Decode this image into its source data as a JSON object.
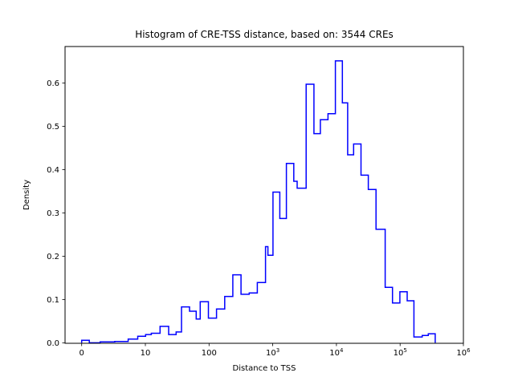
{
  "chart_data": {
    "type": "histogram-step",
    "title": "Histogram of CRE-TSS distance, based on: 3544 CREs",
    "xlabel": "Distance to TSS",
    "ylabel": "Density",
    "n_cres": 3544,
    "x_scale": "symlog",
    "x_linthresh": 10,
    "xlim_ticks": [
      0,
      1000000
    ],
    "ylim": [
      0,
      0.684
    ],
    "grid": false,
    "legend": "none",
    "line_color": "#0000ff",
    "frame_color": "#000000",
    "x_ticks": [
      {
        "v": 0,
        "label": "0",
        "exp": ""
      },
      {
        "v": 10,
        "label": "10",
        "exp": ""
      },
      {
        "v": 100,
        "label": "100",
        "exp": ""
      },
      {
        "v": 1000,
        "label": "10",
        "exp": "3"
      },
      {
        "v": 10000,
        "label": "10",
        "exp": "4"
      },
      {
        "v": 100000,
        "label": "10",
        "exp": "5"
      },
      {
        "v": 1000000,
        "label": "10",
        "exp": "6"
      }
    ],
    "y_ticks": [
      0.0,
      0.1,
      0.2,
      0.3,
      0.4,
      0.5,
      0.6
    ],
    "bins_format": [
      "x_left",
      "x_right",
      "density"
    ],
    "bins": [
      [
        0,
        1.2,
        0.006
      ],
      [
        1.2,
        2.9,
        0.0
      ],
      [
        2.9,
        5.2,
        0.002
      ],
      [
        5.2,
        7.3,
        0.003
      ],
      [
        7.3,
        8.8,
        0.0085
      ],
      [
        8.8,
        10.1,
        0.015
      ],
      [
        10.1,
        12.4,
        0.019
      ],
      [
        12.4,
        17,
        0.022
      ],
      [
        17,
        23.2,
        0.038
      ],
      [
        23.2,
        30.4,
        0.019
      ],
      [
        30.4,
        36.9,
        0.025
      ],
      [
        36.9,
        49.4,
        0.083
      ],
      [
        49.4,
        62.8,
        0.073
      ],
      [
        62.8,
        72.6,
        0.055
      ],
      [
        72.6,
        97.7,
        0.095
      ],
      [
        97.7,
        131,
        0.057
      ],
      [
        131,
        176,
        0.078
      ],
      [
        176,
        236,
        0.107
      ],
      [
        236,
        318,
        0.157
      ],
      [
        318,
        427,
        0.112
      ],
      [
        427,
        573,
        0.115
      ],
      [
        573,
        770,
        0.139
      ],
      [
        770,
        840,
        0.222
      ],
      [
        840,
        1010,
        0.202
      ],
      [
        1010,
        1290,
        0.348
      ],
      [
        1290,
        1640,
        0.287
      ],
      [
        1640,
        2140,
        0.414
      ],
      [
        2140,
        2420,
        0.373
      ],
      [
        2420,
        3350,
        0.357
      ],
      [
        3350,
        4430,
        0.597
      ],
      [
        4430,
        5600,
        0.483
      ],
      [
        5600,
        7380,
        0.515
      ],
      [
        7380,
        9620,
        0.529
      ],
      [
        9620,
        12400,
        0.651
      ],
      [
        12400,
        15000,
        0.554
      ],
      [
        15000,
        18600,
        0.434
      ],
      [
        18600,
        24300,
        0.459
      ],
      [
        24300,
        31700,
        0.387
      ],
      [
        31700,
        41900,
        0.354
      ],
      [
        41900,
        58200,
        0.262
      ],
      [
        58200,
        75800,
        0.128
      ],
      [
        75800,
        99100,
        0.092
      ],
      [
        99100,
        129000,
        0.118
      ],
      [
        129000,
        165000,
        0.097
      ],
      [
        165000,
        222000,
        0.0135
      ],
      [
        222000,
        277000,
        0.017
      ],
      [
        277000,
        356000,
        0.021
      ]
    ]
  }
}
